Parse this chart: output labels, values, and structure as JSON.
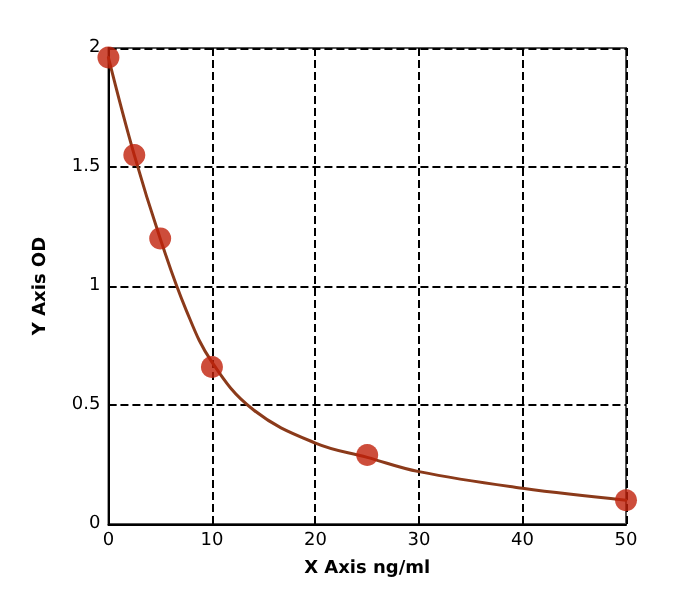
{
  "chart_data": {
    "type": "scatter",
    "xlabel": "X Axis ng/ml",
    "ylabel": "Y Axis OD",
    "xlim": [
      0,
      50
    ],
    "xticks": [
      0,
      10,
      20,
      30,
      40,
      50
    ],
    "ylim": [
      0,
      2
    ],
    "yticks": [
      0,
      0.5,
      1,
      1.5,
      2
    ],
    "grid": true,
    "marker": "circle",
    "series": [
      {
        "type": "line",
        "color": "#8b3a1a",
        "line_style": "solid",
        "marker": "none",
        "x": [
          0,
          2.5,
          5,
          7.5,
          10,
          14,
          20,
          25,
          30,
          40,
          50
        ],
        "values": [
          1.96,
          1.55,
          1.2,
          0.9,
          0.68,
          0.48,
          0.34,
          0.28,
          0.22,
          0.15,
          0.1
        ]
      },
      {
        "type": "scatter",
        "color": "#c0200a",
        "x": [
          0,
          2.5,
          5,
          10,
          25,
          50
        ],
        "values": [
          1.96,
          1.55,
          1.2,
          0.66,
          0.29,
          0.1
        ]
      }
    ]
  }
}
